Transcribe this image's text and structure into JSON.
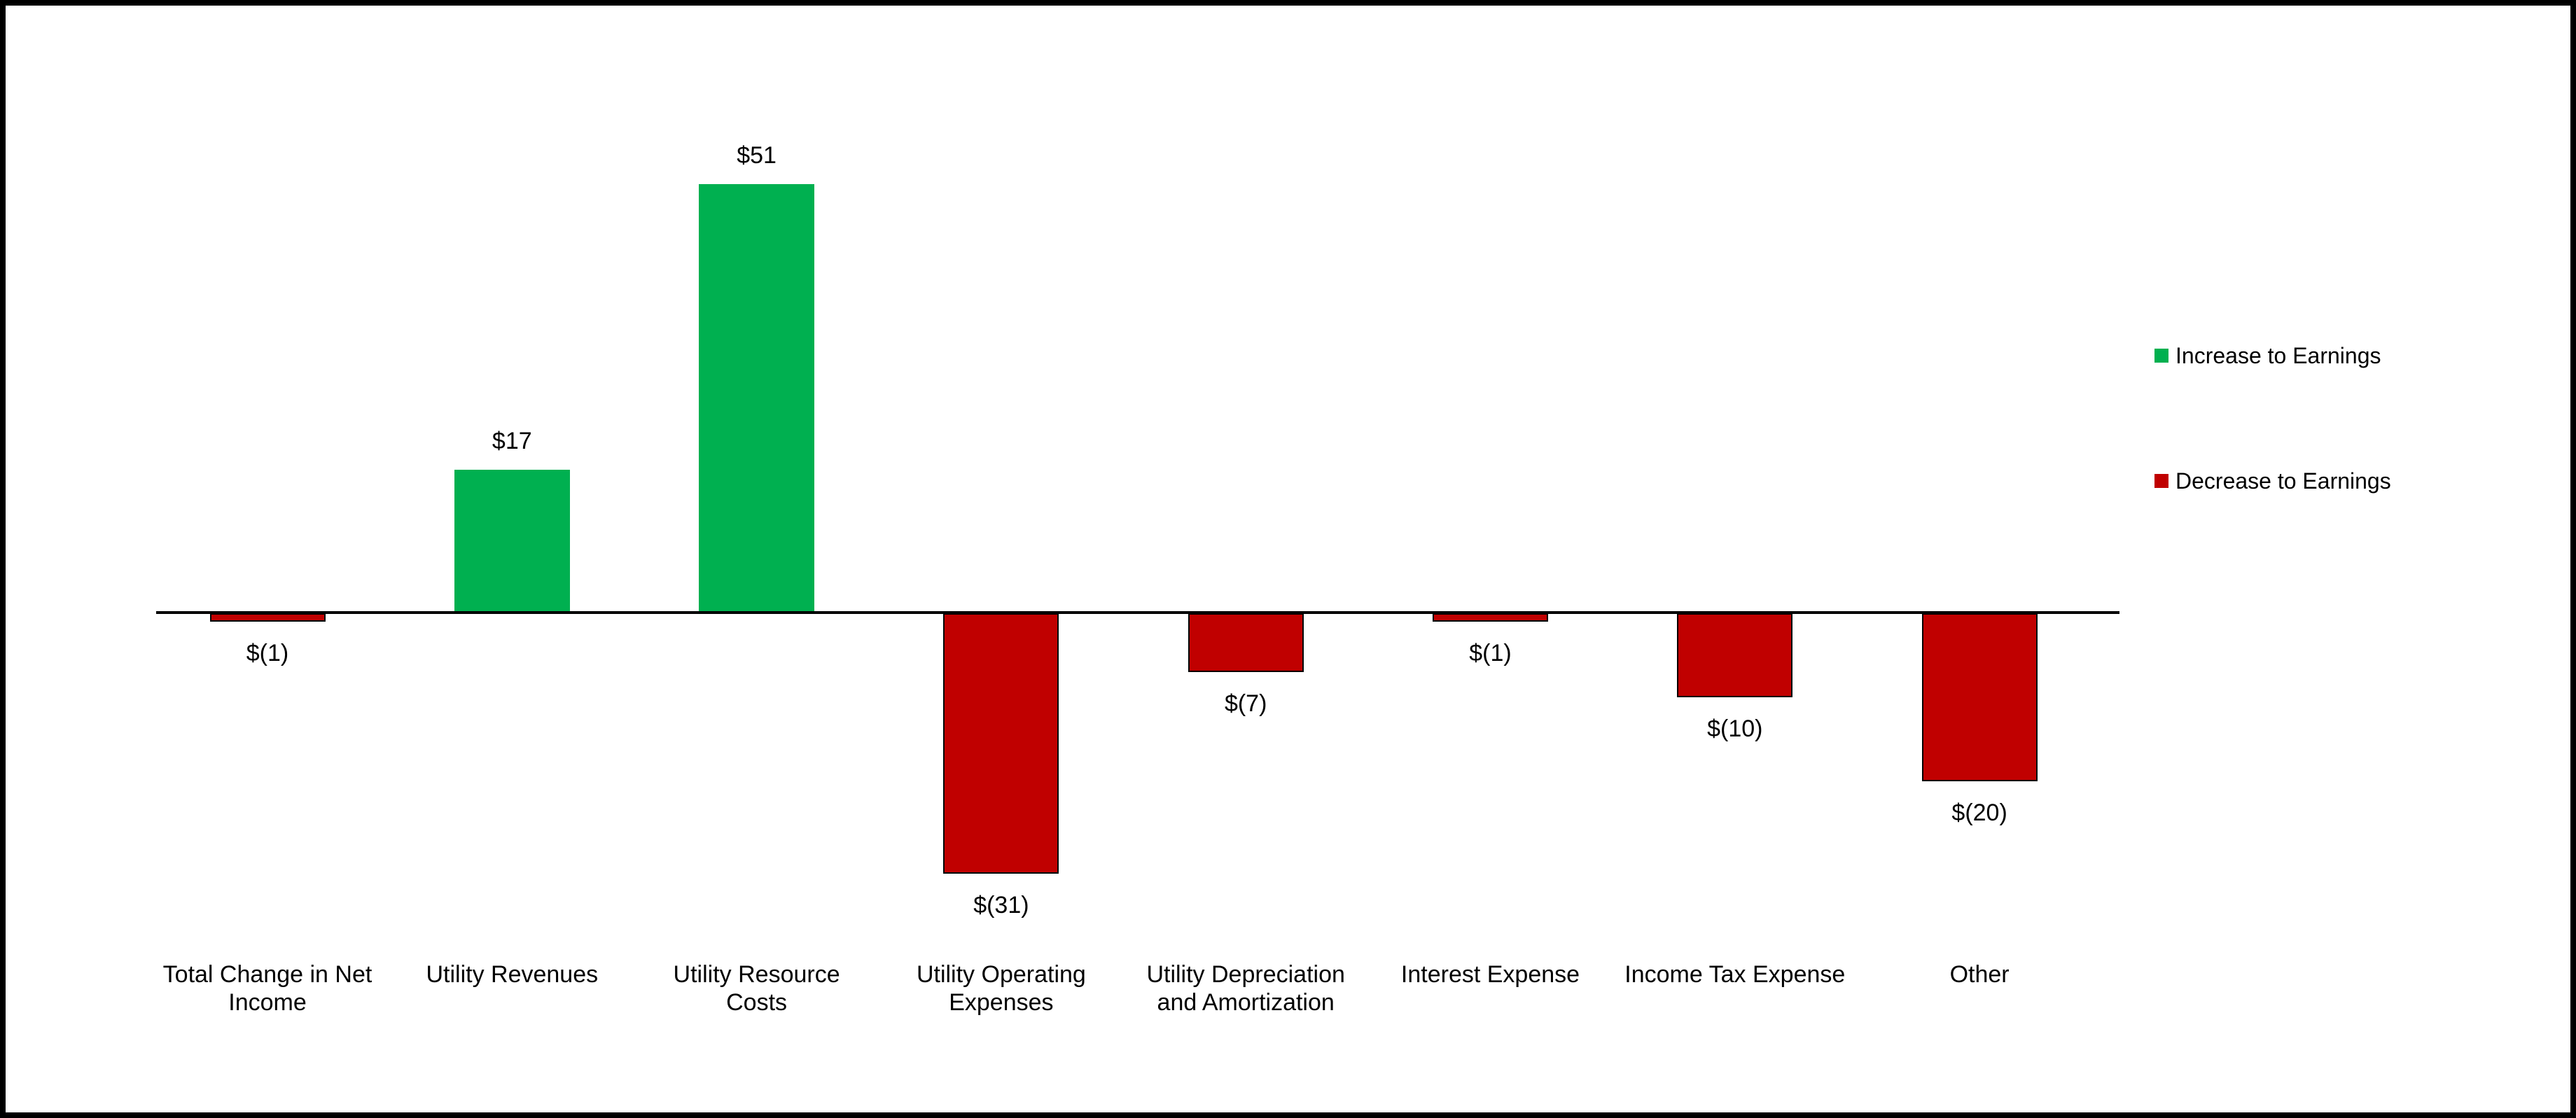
{
  "chart_data": {
    "type": "bar",
    "title": "",
    "xlabel": "",
    "ylabel": "",
    "categories": [
      "Total Change in Net Income",
      "Utility Revenues",
      "Utility Resource Costs",
      "Utility Operating Expenses",
      "Utility Depreciation and Amortization",
      "Interest Expense",
      "Income Tax Expense",
      "Other"
    ],
    "category_lines": [
      [
        "Total Change in Net",
        "Income"
      ],
      [
        "Utility Revenues"
      ],
      [
        "Utility Resource",
        "Costs"
      ],
      [
        "Utility Operating",
        "Expenses"
      ],
      [
        "Utility Depreciation",
        "and Amortization"
      ],
      [
        "Interest Expense"
      ],
      [
        "Income Tax Expense"
      ],
      [
        "Other"
      ]
    ],
    "values": [
      -1,
      17,
      51,
      -31,
      -7,
      -1,
      -10,
      -20
    ],
    "value_labels": [
      "$(1)",
      "$17",
      "$51",
      "$(31)",
      "$(7)",
      "$(1)",
      "$(10)",
      "$(20)"
    ],
    "colors": {
      "increase": "#00B050",
      "decrease": "#C00000",
      "axis": "#000000",
      "text": "#000000",
      "background": "#FFFFFF"
    },
    "legend": {
      "position": "right",
      "items": [
        {
          "label": "Increase to Earnings",
          "color": "#00B050"
        },
        {
          "label": "Decrease to Earnings",
          "color": "#C00000"
        }
      ]
    },
    "axis": {
      "baseline_value": 0,
      "y_axis_visible": false,
      "gridlines": false
    }
  }
}
